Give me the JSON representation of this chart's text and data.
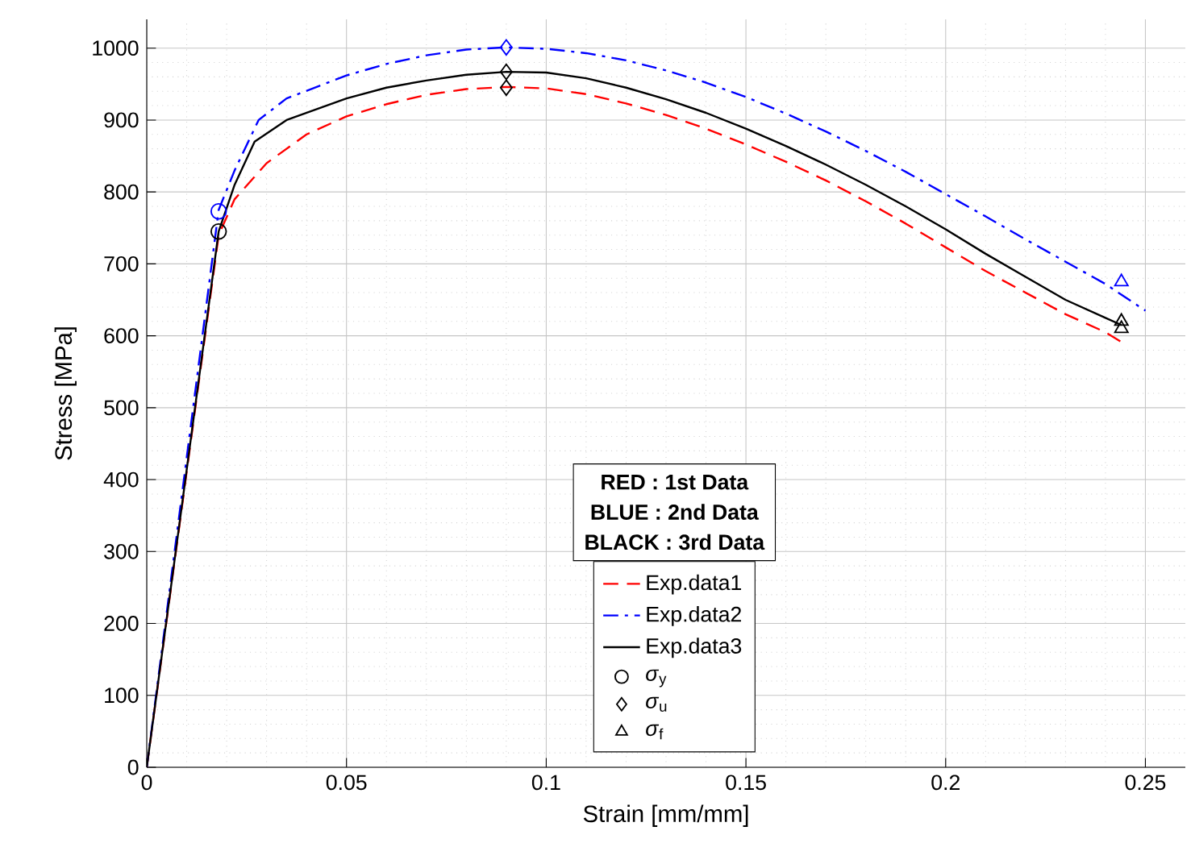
{
  "chart_data": {
    "type": "line",
    "xlabel": "Strain [mm/mm]",
    "ylabel": "Stress [MPa]",
    "xlim": [
      0,
      0.26
    ],
    "ylim": [
      0,
      1040
    ],
    "xticks": [
      0,
      0.05,
      0.1,
      0.15,
      0.2,
      0.25
    ],
    "yticks": [
      0,
      100,
      200,
      300,
      400,
      500,
      600,
      700,
      800,
      900,
      1000
    ],
    "grid": true,
    "legend": "bottom",
    "annotations": [
      "RED : 1st Data",
      "BLUE : 2nd Data",
      "BLACK : 3rd Data"
    ],
    "series": [
      {
        "name": "Exp.data1",
        "color": "#ff0000",
        "line_style": "dashed",
        "x": [
          0,
          0.018,
          0.022,
          0.03,
          0.04,
          0.05,
          0.06,
          0.07,
          0.08,
          0.09,
          0.1,
          0.11,
          0.12,
          0.13,
          0.14,
          0.15,
          0.16,
          0.17,
          0.18,
          0.19,
          0.2,
          0.21,
          0.22,
          0.23,
          0.24,
          0.245
        ],
        "values": [
          0,
          740,
          790,
          840,
          880,
          905,
          922,
          935,
          943,
          946,
          944,
          936,
          923,
          907,
          888,
          866,
          842,
          816,
          787,
          756,
          723,
          690,
          660,
          630,
          605,
          588
        ]
      },
      {
        "name": "Exp.data2",
        "color": "#0000ff",
        "line_style": "dashdot",
        "x": [
          0,
          0.018,
          0.022,
          0.028,
          0.035,
          0.05,
          0.06,
          0.07,
          0.08,
          0.09,
          0.1,
          0.11,
          0.12,
          0.13,
          0.14,
          0.15,
          0.16,
          0.17,
          0.18,
          0.19,
          0.2,
          0.21,
          0.22,
          0.23,
          0.24,
          0.25
        ],
        "values": [
          0,
          775,
          830,
          900,
          930,
          962,
          978,
          990,
          998,
          1001,
          999,
          993,
          983,
          969,
          952,
          932,
          909,
          884,
          857,
          828,
          797,
          766,
          734,
          703,
          672,
          635
        ]
      },
      {
        "name": "Exp.data3",
        "color": "#000000",
        "line_style": "solid",
        "x": [
          0,
          0.018,
          0.022,
          0.027,
          0.035,
          0.05,
          0.06,
          0.07,
          0.08,
          0.09,
          0.1,
          0.11,
          0.12,
          0.13,
          0.14,
          0.15,
          0.16,
          0.17,
          0.18,
          0.19,
          0.2,
          0.21,
          0.22,
          0.23,
          0.24,
          0.244
        ],
        "values": [
          0,
          745,
          810,
          870,
          900,
          930,
          945,
          955,
          963,
          967,
          966,
          958,
          945,
          929,
          910,
          888,
          864,
          838,
          810,
          780,
          748,
          714,
          682,
          650,
          625,
          615
        ]
      },
      {
        "type": "scatter",
        "name": "*σ*$_{y}$",
        "marker": "circle",
        "color": "#000000",
        "x": [
          0.018,
          0.018
        ],
        "values": [
          773,
          745
        ],
        "colors": [
          "#0000ff",
          "#000000"
        ]
      },
      {
        "type": "scatter",
        "name": "*σ*$_{u}$",
        "marker": "diamond",
        "color": "#000000",
        "x": [
          0.09,
          0.09,
          0.09
        ],
        "values": [
          1001,
          967,
          945
        ],
        "colors": [
          "#0000ff",
          "#000000",
          "#000000"
        ]
      },
      {
        "type": "scatter",
        "name": "*σ*$_{f}$",
        "marker": "triangle",
        "color": "#000000",
        "x": [
          0.244,
          0.244,
          0.244
        ],
        "values": [
          675,
          620,
          610
        ],
        "colors": [
          "#0000ff",
          "#000000",
          "#000000"
        ]
      }
    ]
  }
}
